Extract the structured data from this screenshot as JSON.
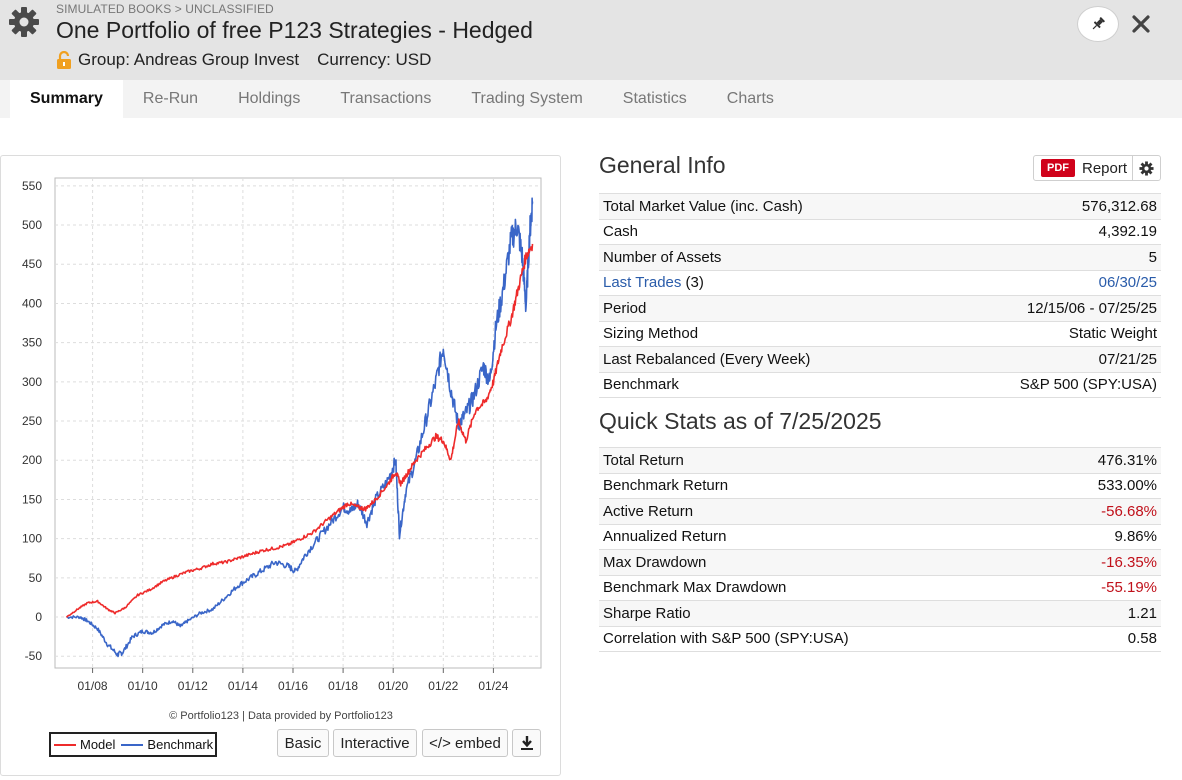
{
  "header": {
    "breadcrumb": "SIMULATED BOOKS > UNCLASSIFIED",
    "title": "One Portfolio of free P123 Strategies - Hedged",
    "group_label": "Group: Andreas Group Invest",
    "currency_label": "Currency: USD"
  },
  "tabs": [
    {
      "label": "Summary",
      "active": true
    },
    {
      "label": "Re-Run"
    },
    {
      "label": "Holdings"
    },
    {
      "label": "Transactions"
    },
    {
      "label": "Trading System"
    },
    {
      "label": "Statistics"
    },
    {
      "label": "Charts"
    }
  ],
  "general_info": {
    "title": "General Info",
    "report_label": "Report",
    "pdf_label": "PDF",
    "rows": [
      {
        "label": "Total Market Value (inc. Cash)",
        "value": "576,312.68"
      },
      {
        "label": "Cash",
        "value": "4,392.19"
      },
      {
        "label": "Number of Assets",
        "value": "5"
      },
      {
        "label": "Last Trades",
        "suffix": " (3)",
        "value": "06/30/25"
      },
      {
        "label": "Period",
        "value": "12/15/06 - 07/25/25"
      },
      {
        "label": "Sizing Method",
        "value": "Static Weight"
      },
      {
        "label": "Last Rebalanced (Every Week)",
        "value": "07/21/25"
      },
      {
        "label": "Benchmark",
        "value": "S&P 500 (SPY:USA)"
      }
    ]
  },
  "quick_stats": {
    "title": "Quick Stats as of 7/25/2025",
    "rows": [
      {
        "label": "Total Return",
        "value": "476.31%"
      },
      {
        "label": "Benchmark Return",
        "value": "533.00%"
      },
      {
        "label": "Active Return",
        "value": "-56.68%"
      },
      {
        "label": "Annualized Return",
        "value": "9.86%"
      },
      {
        "label": "Max Drawdown",
        "value": "-16.35%"
      },
      {
        "label": "Benchmark Max Drawdown",
        "value": "-55.19%"
      },
      {
        "label": "Sharpe Ratio",
        "value": "1.21"
      },
      {
        "label": "Correlation with S&P 500 (SPY:USA)",
        "value": "0.58"
      }
    ]
  },
  "chart_buttons": {
    "basic": "Basic",
    "interactive": "Interactive",
    "embed": "</> embed"
  },
  "colors": {
    "model": "#ee2b2b",
    "benchmark": "#3a66c8",
    "negative": "#c0101a",
    "link": "#2a5caa"
  },
  "chart_data": {
    "type": "line",
    "title": "",
    "credit": "© Portfolio123 | Data provided by Portfolio123",
    "xlabel": "",
    "ylabel": "",
    "x_start": 2006.96,
    "x_end": 2025.56,
    "xlim": [
      2006.5,
      2025.9
    ],
    "ylim": [
      -65,
      560
    ],
    "yticks": [
      -50,
      0,
      50,
      100,
      150,
      200,
      250,
      300,
      350,
      400,
      450,
      500,
      550
    ],
    "xticks": [
      {
        "label": "01/08",
        "x": 2008.0
      },
      {
        "label": "01/10",
        "x": 2010.0
      },
      {
        "label": "01/12",
        "x": 2012.0
      },
      {
        "label": "01/14",
        "x": 2014.0
      },
      {
        "label": "01/16",
        "x": 2016.0
      },
      {
        "label": "01/18",
        "x": 2018.0
      },
      {
        "label": "01/20",
        "x": 2020.0
      },
      {
        "label": "01/22",
        "x": 2022.0
      },
      {
        "label": "01/24",
        "x": 2024.0
      }
    ],
    "legend": "bottom-left",
    "series": [
      {
        "name": "Model",
        "color": "#ee2b2b",
        "points": [
          [
            2006.96,
            0
          ],
          [
            2007.4,
            10
          ],
          [
            2007.8,
            18
          ],
          [
            2008.2,
            20
          ],
          [
            2008.6,
            10
          ],
          [
            2008.9,
            5
          ],
          [
            2009.3,
            12
          ],
          [
            2009.8,
            28
          ],
          [
            2010.3,
            35
          ],
          [
            2010.8,
            45
          ],
          [
            2011.3,
            52
          ],
          [
            2011.8,
            58
          ],
          [
            2012.3,
            62
          ],
          [
            2012.8,
            68
          ],
          [
            2013.3,
            70
          ],
          [
            2013.8,
            75
          ],
          [
            2014.3,
            80
          ],
          [
            2014.8,
            85
          ],
          [
            2015.3,
            88
          ],
          [
            2015.8,
            92
          ],
          [
            2016.3,
            100
          ],
          [
            2016.8,
            108
          ],
          [
            2017.3,
            122
          ],
          [
            2017.8,
            135
          ],
          [
            2018.2,
            145
          ],
          [
            2018.6,
            140
          ],
          [
            2018.9,
            138
          ],
          [
            2019.3,
            150
          ],
          [
            2019.8,
            170
          ],
          [
            2020.1,
            185
          ],
          [
            2020.3,
            170
          ],
          [
            2020.6,
            185
          ],
          [
            2020.9,
            200
          ],
          [
            2021.3,
            215
          ],
          [
            2021.7,
            230
          ],
          [
            2022.0,
            225
          ],
          [
            2022.3,
            200
          ],
          [
            2022.6,
            250
          ],
          [
            2022.9,
            225
          ],
          [
            2023.3,
            265
          ],
          [
            2023.7,
            275
          ],
          [
            2024.0,
            300
          ],
          [
            2024.3,
            340
          ],
          [
            2024.7,
            380
          ],
          [
            2025.0,
            420
          ],
          [
            2025.3,
            460
          ],
          [
            2025.56,
            476
          ]
        ]
      },
      {
        "name": "Benchmark",
        "color": "#3a66c8",
        "points": [
          [
            2006.96,
            0
          ],
          [
            2007.5,
            0
          ],
          [
            2007.8,
            -5
          ],
          [
            2008.2,
            -15
          ],
          [
            2008.6,
            -35
          ],
          [
            2009.0,
            -48
          ],
          [
            2009.2,
            -45
          ],
          [
            2009.6,
            -25
          ],
          [
            2010.0,
            -18
          ],
          [
            2010.4,
            -20
          ],
          [
            2010.8,
            -10
          ],
          [
            2011.2,
            -5
          ],
          [
            2011.5,
            -12
          ],
          [
            2011.8,
            -5
          ],
          [
            2012.3,
            5
          ],
          [
            2012.8,
            10
          ],
          [
            2013.3,
            25
          ],
          [
            2013.8,
            40
          ],
          [
            2014.3,
            50
          ],
          [
            2014.8,
            60
          ],
          [
            2015.3,
            70
          ],
          [
            2015.8,
            65
          ],
          [
            2016.1,
            58
          ],
          [
            2016.5,
            80
          ],
          [
            2017.0,
            100
          ],
          [
            2017.5,
            120
          ],
          [
            2018.0,
            140
          ],
          [
            2018.3,
            135
          ],
          [
            2018.6,
            145
          ],
          [
            2018.95,
            120
          ],
          [
            2019.3,
            150
          ],
          [
            2019.8,
            175
          ],
          [
            2020.1,
            200
          ],
          [
            2020.25,
            105
          ],
          [
            2020.5,
            160
          ],
          [
            2020.9,
            200
          ],
          [
            2021.3,
            250
          ],
          [
            2021.7,
            300
          ],
          [
            2022.0,
            345
          ],
          [
            2022.3,
            290
          ],
          [
            2022.6,
            245
          ],
          [
            2022.9,
            260
          ],
          [
            2023.2,
            280
          ],
          [
            2023.6,
            320
          ],
          [
            2023.85,
            300
          ],
          [
            2024.1,
            370
          ],
          [
            2024.4,
            420
          ],
          [
            2024.7,
            480
          ],
          [
            2024.95,
            500
          ],
          [
            2025.15,
            460
          ],
          [
            2025.3,
            395
          ],
          [
            2025.45,
            490
          ],
          [
            2025.56,
            530
          ]
        ]
      }
    ]
  }
}
